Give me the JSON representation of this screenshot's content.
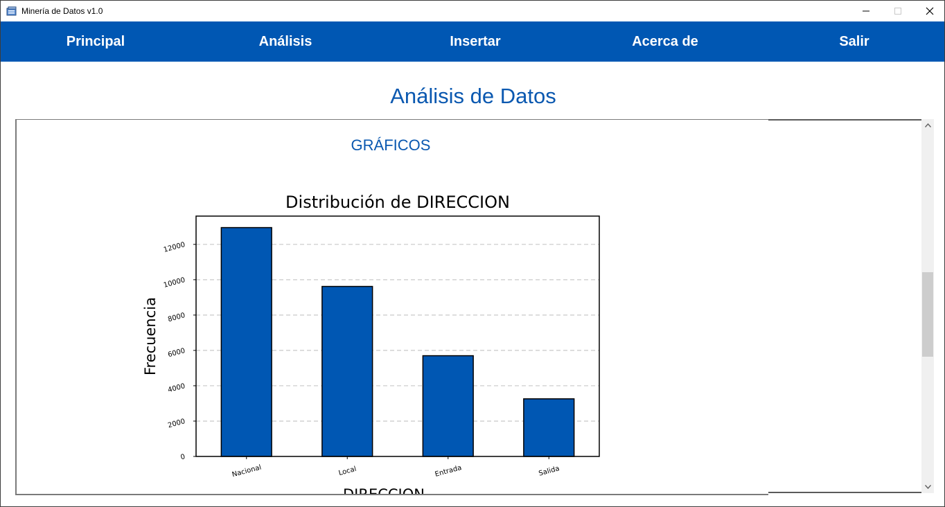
{
  "window": {
    "title": "Minería de Datos v1.0"
  },
  "nav": {
    "items": [
      "Principal",
      "Análisis",
      "Insertar",
      "Acerca de",
      "Salir"
    ]
  },
  "page": {
    "title": "Análisis de Datos",
    "section_title": "GRÁFICOS"
  },
  "chart_data": {
    "type": "bar",
    "title": "Distribución de DIRECCION",
    "xlabel": "DIRECCION",
    "ylabel": "Frecuencia",
    "categories": [
      "Nacional",
      "Local",
      "Entrada",
      "Salida"
    ],
    "values": [
      12950,
      9620,
      5700,
      3260
    ],
    "ylim": [
      0,
      13600
    ],
    "yticks": [
      0,
      2000,
      4000,
      6000,
      8000,
      10000,
      12000
    ],
    "ytick_labels": [
      "0",
      "2000",
      "4000",
      "6000",
      "8000",
      "10000",
      "12000"
    ],
    "grid": "y-dashed",
    "bar_color": "#0057b3",
    "bar_edge_color": "#000000"
  }
}
